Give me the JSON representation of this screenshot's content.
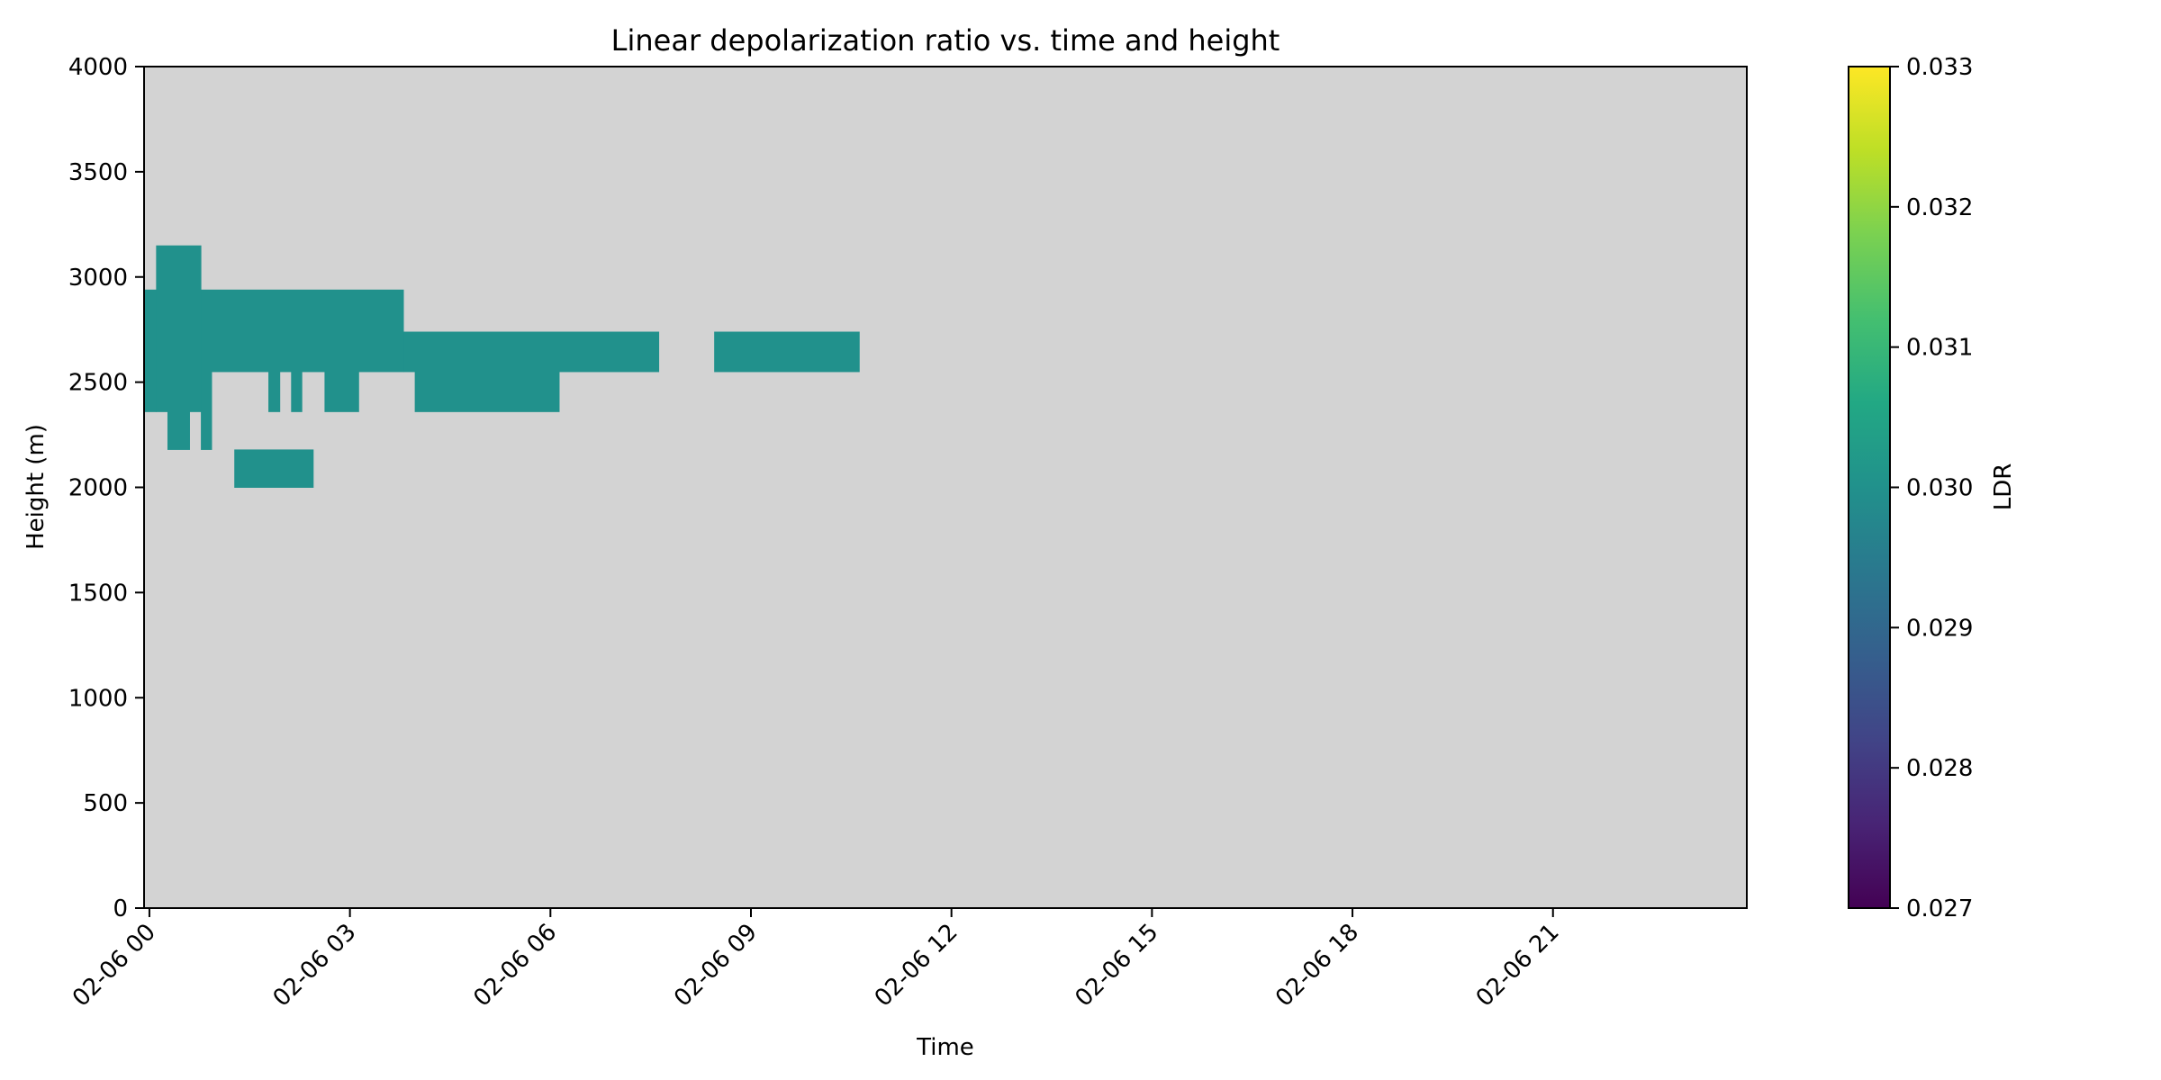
{
  "chart_data": {
    "type": "heatmap",
    "title": "Linear depolarization ratio vs. time and height",
    "xlabel": "Time",
    "ylabel": "Height (m)",
    "xlim_hours": [
      -0.08,
      23.9
    ],
    "ylim": [
      0,
      4000
    ],
    "x_ticks": [
      {
        "hour": 0,
        "label": "02-06 00"
      },
      {
        "hour": 3,
        "label": "02-06 03"
      },
      {
        "hour": 6,
        "label": "02-06 06"
      },
      {
        "hour": 9,
        "label": "02-06 09"
      },
      {
        "hour": 12,
        "label": "02-06 12"
      },
      {
        "hour": 15,
        "label": "02-06 15"
      },
      {
        "hour": 18,
        "label": "02-06 18"
      },
      {
        "hour": 21,
        "label": "02-06 21"
      }
    ],
    "y_ticks": [
      0,
      500,
      1000,
      1500,
      2000,
      2500,
      3000,
      3500,
      4000
    ],
    "background_color": "#d3d3d3",
    "colormap": "viridis",
    "colorbar": {
      "label": "LDR",
      "range": [
        0.027,
        0.033
      ],
      "ticks": [
        "0.027",
        "0.028",
        "0.029",
        "0.030",
        "0.031",
        "0.032",
        "0.033"
      ]
    },
    "cells": [
      {
        "t0": -0.08,
        "t1": 0.1,
        "h0": 2360,
        "h1": 2940,
        "ldr": 0.03
      },
      {
        "t0": 0.1,
        "t1": 0.77,
        "h0": 2360,
        "h1": 3150,
        "ldr": 0.03
      },
      {
        "t0": 0.77,
        "t1": 3.8,
        "h0": 2550,
        "h1": 2940,
        "ldr": 0.03
      },
      {
        "t0": 3.8,
        "t1": 7.62,
        "h0": 2550,
        "h1": 2740,
        "ldr": 0.03
      },
      {
        "t0": 8.45,
        "t1": 10.62,
        "h0": 2550,
        "h1": 2740,
        "ldr": 0.03
      },
      {
        "t0": 0.77,
        "t1": 0.93,
        "h0": 2180,
        "h1": 2550,
        "ldr": 0.03
      },
      {
        "t0": 0.27,
        "t1": 0.6,
        "h0": 2180,
        "h1": 2360,
        "ldr": 0.03
      },
      {
        "t0": 1.78,
        "t1": 1.95,
        "h0": 2360,
        "h1": 2550,
        "ldr": 0.03
      },
      {
        "t0": 2.12,
        "t1": 2.28,
        "h0": 2360,
        "h1": 2550,
        "ldr": 0.03
      },
      {
        "t0": 2.62,
        "t1": 3.13,
        "h0": 2360,
        "h1": 2550,
        "ldr": 0.03
      },
      {
        "t0": 3.97,
        "t1": 6.13,
        "h0": 2360,
        "h1": 2550,
        "ldr": 0.03
      },
      {
        "t0": 1.27,
        "t1": 2.45,
        "h0": 2000,
        "h1": 2180,
        "ldr": 0.03
      }
    ]
  }
}
